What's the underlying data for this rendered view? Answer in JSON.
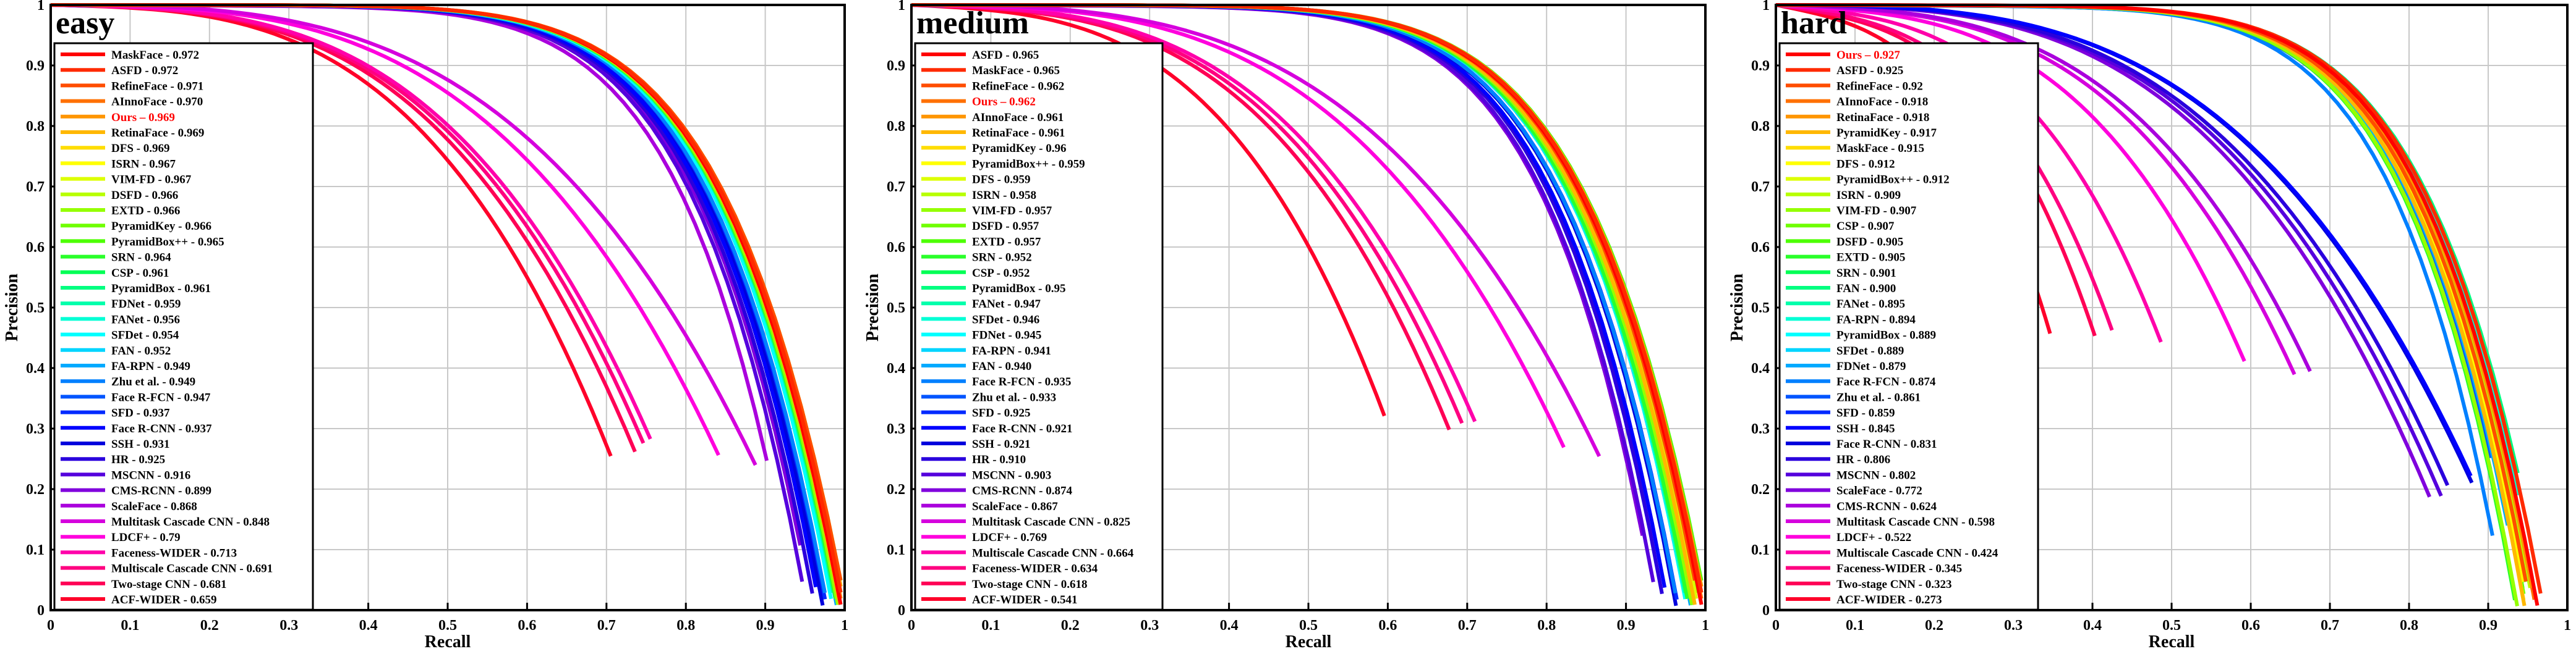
{
  "common": {
    "xlabel": "Recall",
    "ylabel": "Precision",
    "xticks": [
      "0",
      "0.1",
      "0.2",
      "0.3",
      "0.4",
      "0.5",
      "0.6",
      "0.7",
      "0.8",
      "0.9",
      "1"
    ],
    "yticks": [
      "0",
      "0.1",
      "0.2",
      "0.3",
      "0.4",
      "0.5",
      "0.6",
      "0.7",
      "0.8",
      "0.9",
      "1"
    ],
    "xlim": [
      0,
      1
    ],
    "ylim": [
      0,
      1
    ],
    "grid": true,
    "highlight_color": "#ff0000"
  },
  "chart_data": [
    {
      "type": "line",
      "title": "easy",
      "legend_position": "top-left",
      "series": [
        {
          "name": "MaskFace - 0.972",
          "color": "#ff0000",
          "ap": 0.972
        },
        {
          "name": "ASFD - 0.972",
          "color": "#ff2a00",
          "ap": 0.972
        },
        {
          "name": "RefineFace - 0.971",
          "color": "#ff4d00",
          "ap": 0.971
        },
        {
          "name": "AInnoFace - 0.970",
          "color": "#ff7000",
          "ap": 0.97
        },
        {
          "name": "Ours – 0.969",
          "color": "#ff9500",
          "ap": 0.969,
          "highlight": true
        },
        {
          "name": "RetinaFace - 0.969",
          "color": "#ffb800",
          "ap": 0.969
        },
        {
          "name": "DFS - 0.969",
          "color": "#ffdd00",
          "ap": 0.969
        },
        {
          "name": "ISRN - 0.967",
          "color": "#ffff00",
          "ap": 0.967
        },
        {
          "name": "VIM-FD - 0.967",
          "color": "#ddff00",
          "ap": 0.967
        },
        {
          "name": "DSFD - 0.966",
          "color": "#b8ff00",
          "ap": 0.966
        },
        {
          "name": "EXTD - 0.966",
          "color": "#95ff00",
          "ap": 0.966
        },
        {
          "name": "PyramidKey - 0.966",
          "color": "#70ff00",
          "ap": 0.966
        },
        {
          "name": "PyramidBox++ - 0.965",
          "color": "#4dff00",
          "ap": 0.965
        },
        {
          "name": "SRN - 0.964",
          "color": "#2aff2a",
          "ap": 0.964
        },
        {
          "name": "CSP - 0.961",
          "color": "#00ff55",
          "ap": 0.961
        },
        {
          "name": "PyramidBox - 0.961",
          "color": "#00ff80",
          "ap": 0.961
        },
        {
          "name": "FDNet - 0.959",
          "color": "#00ffaa",
          "ap": 0.959
        },
        {
          "name": "FANet - 0.956",
          "color": "#00ffd5",
          "ap": 0.956
        },
        {
          "name": "SFDet - 0.954",
          "color": "#00ffff",
          "ap": 0.954
        },
        {
          "name": "FAN - 0.952",
          "color": "#00d5ff",
          "ap": 0.952
        },
        {
          "name": "FA-RPN - 0.949",
          "color": "#00aaff",
          "ap": 0.949
        },
        {
          "name": "Zhu et al. - 0.949",
          "color": "#0080ff",
          "ap": 0.949
        },
        {
          "name": "Face R-FCN - 0.947",
          "color": "#0055ff",
          "ap": 0.947
        },
        {
          "name": "SFD - 0.937",
          "color": "#002aff",
          "ap": 0.937
        },
        {
          "name": "Face R-CNN - 0.937",
          "color": "#0000ff",
          "ap": 0.937
        },
        {
          "name": "SSH - 0.931",
          "color": "#0000dd",
          "ap": 0.931
        },
        {
          "name": "HR - 0.925",
          "color": "#2a00dd",
          "ap": 0.925
        },
        {
          "name": "MSCNN - 0.916",
          "color": "#5500dd",
          "ap": 0.916
        },
        {
          "name": "CMS-RCNN - 0.899",
          "color": "#8000dd",
          "ap": 0.899
        },
        {
          "name": "ScaleFace - 0.868",
          "color": "#aa00dd",
          "ap": 0.868
        },
        {
          "name": "Multitask Cascade CNN - 0.848",
          "color": "#d500dd",
          "ap": 0.848
        },
        {
          "name": "LDCF+ - 0.79",
          "color": "#ff00dd",
          "ap": 0.79
        },
        {
          "name": "Faceness-WIDER - 0.713",
          "color": "#ff00aa",
          "ap": 0.713
        },
        {
          "name": "Multiscale Cascade CNN - 0.691",
          "color": "#ff0080",
          "ap": 0.691
        },
        {
          "name": "Two-stage CNN - 0.681",
          "color": "#ff0055",
          "ap": 0.681
        },
        {
          "name": "ACF-WIDER - 0.659",
          "color": "#ff002a",
          "ap": 0.659
        }
      ]
    },
    {
      "type": "line",
      "title": "medium",
      "legend_position": "top-left",
      "series": [
        {
          "name": "ASFD - 0.965",
          "color": "#ff0000",
          "ap": 0.965
        },
        {
          "name": "MaskFace - 0.965",
          "color": "#ff2a00",
          "ap": 0.965
        },
        {
          "name": "RefineFace - 0.962",
          "color": "#ff4d00",
          "ap": 0.962
        },
        {
          "name": "Ours – 0.962",
          "color": "#ff7000",
          "ap": 0.962,
          "highlight": true
        },
        {
          "name": "AInnoFace - 0.961",
          "color": "#ff9500",
          "ap": 0.961
        },
        {
          "name": "RetinaFace - 0.961",
          "color": "#ffb800",
          "ap": 0.961
        },
        {
          "name": "PyramidKey - 0.96",
          "color": "#ffdd00",
          "ap": 0.96
        },
        {
          "name": "PyramidBox++ - 0.959",
          "color": "#ffff00",
          "ap": 0.959
        },
        {
          "name": "DFS - 0.959",
          "color": "#ddff00",
          "ap": 0.959
        },
        {
          "name": "ISRN - 0.958",
          "color": "#b8ff00",
          "ap": 0.958
        },
        {
          "name": "VIM-FD - 0.957",
          "color": "#95ff00",
          "ap": 0.957
        },
        {
          "name": "DSFD - 0.957",
          "color": "#70ff00",
          "ap": 0.957
        },
        {
          "name": "EXTD - 0.957",
          "color": "#4dff00",
          "ap": 0.957
        },
        {
          "name": "SRN - 0.952",
          "color": "#2aff2a",
          "ap": 0.952
        },
        {
          "name": "CSP - 0.952",
          "color": "#00ff55",
          "ap": 0.952
        },
        {
          "name": "PyramidBox - 0.95",
          "color": "#00ff80",
          "ap": 0.95
        },
        {
          "name": "FANet - 0.947",
          "color": "#00ffaa",
          "ap": 0.947
        },
        {
          "name": "SFDet - 0.946",
          "color": "#00ffd5",
          "ap": 0.946
        },
        {
          "name": "FDNet - 0.945",
          "color": "#00ffff",
          "ap": 0.945
        },
        {
          "name": "FA-RPN - 0.941",
          "color": "#00d5ff",
          "ap": 0.941
        },
        {
          "name": "FAN - 0.940",
          "color": "#00aaff",
          "ap": 0.94
        },
        {
          "name": "Face R-FCN - 0.935",
          "color": "#0080ff",
          "ap": 0.935
        },
        {
          "name": "Zhu et al. - 0.933",
          "color": "#0055ff",
          "ap": 0.933
        },
        {
          "name": "SFD - 0.925",
          "color": "#002aff",
          "ap": 0.925
        },
        {
          "name": "Face R-CNN - 0.921",
          "color": "#0000ff",
          "ap": 0.921
        },
        {
          "name": "SSH - 0.921",
          "color": "#0000dd",
          "ap": 0.921
        },
        {
          "name": "HR - 0.910",
          "color": "#2a00dd",
          "ap": 0.91
        },
        {
          "name": "MSCNN - 0.903",
          "color": "#5500dd",
          "ap": 0.903
        },
        {
          "name": "CMS-RCNN - 0.874",
          "color": "#8000dd",
          "ap": 0.874
        },
        {
          "name": "ScaleFace - 0.867",
          "color": "#aa00dd",
          "ap": 0.867
        },
        {
          "name": "Multitask Cascade CNN - 0.825",
          "color": "#d500dd",
          "ap": 0.825
        },
        {
          "name": "LDCF+ - 0.769",
          "color": "#ff00dd",
          "ap": 0.769
        },
        {
          "name": "Multiscale Cascade CNN - 0.664",
          "color": "#ff00aa",
          "ap": 0.664
        },
        {
          "name": "Faceness-WIDER - 0.634",
          "color": "#ff0080",
          "ap": 0.634
        },
        {
          "name": "Two-stage CNN - 0.618",
          "color": "#ff0055",
          "ap": 0.618
        },
        {
          "name": "ACF-WIDER - 0.541",
          "color": "#ff002a",
          "ap": 0.541
        }
      ]
    },
    {
      "type": "line",
      "title": "hard",
      "legend_position": "top-left",
      "series": [
        {
          "name": "Ours – 0.927",
          "color": "#ff0000",
          "ap": 0.927,
          "highlight": true
        },
        {
          "name": "ASFD - 0.925",
          "color": "#ff2a00",
          "ap": 0.925
        },
        {
          "name": "RefineFace - 0.92",
          "color": "#ff4d00",
          "ap": 0.92
        },
        {
          "name": "AInnoFace - 0.918",
          "color": "#ff7000",
          "ap": 0.918
        },
        {
          "name": "RetinaFace - 0.918",
          "color": "#ff9500",
          "ap": 0.918
        },
        {
          "name": "PyramidKey - 0.917",
          "color": "#ffb800",
          "ap": 0.917
        },
        {
          "name": "MaskFace - 0.915",
          "color": "#ffdd00",
          "ap": 0.915
        },
        {
          "name": "DFS - 0.912",
          "color": "#ffff00",
          "ap": 0.912
        },
        {
          "name": "PyramidBox++ - 0.912",
          "color": "#ddff00",
          "ap": 0.912
        },
        {
          "name": "ISRN - 0.909",
          "color": "#b8ff00",
          "ap": 0.909
        },
        {
          "name": "VIM-FD - 0.907",
          "color": "#95ff00",
          "ap": 0.907
        },
        {
          "name": "CSP - 0.907",
          "color": "#70ff00",
          "ap": 0.907
        },
        {
          "name": "DSFD - 0.905",
          "color": "#4dff00",
          "ap": 0.905
        },
        {
          "name": "EXTD - 0.905",
          "color": "#2aff2a",
          "ap": 0.905
        },
        {
          "name": "SRN - 0.901",
          "color": "#00ff55",
          "ap": 0.901
        },
        {
          "name": "FAN - 0.900",
          "color": "#00ff80",
          "ap": 0.9
        },
        {
          "name": "FANet - 0.895",
          "color": "#00ffaa",
          "ap": 0.895
        },
        {
          "name": "FA-RPN - 0.894",
          "color": "#00ffd5",
          "ap": 0.894
        },
        {
          "name": "PyramidBox - 0.889",
          "color": "#00ffff",
          "ap": 0.889
        },
        {
          "name": "SFDet - 0.889",
          "color": "#00d5ff",
          "ap": 0.889
        },
        {
          "name": "FDNet - 0.879",
          "color": "#00aaff",
          "ap": 0.879
        },
        {
          "name": "Face R-FCN - 0.874",
          "color": "#0080ff",
          "ap": 0.874
        },
        {
          "name": "Zhu et al. - 0.861",
          "color": "#0055ff",
          "ap": 0.861
        },
        {
          "name": "SFD - 0.859",
          "color": "#002aff",
          "ap": 0.859
        },
        {
          "name": "SSH - 0.845",
          "color": "#0000ff",
          "ap": 0.845
        },
        {
          "name": "Face R-CNN - 0.831",
          "color": "#0000dd",
          "ap": 0.831
        },
        {
          "name": "HR - 0.806",
          "color": "#2a00dd",
          "ap": 0.806
        },
        {
          "name": "MSCNN - 0.802",
          "color": "#5500dd",
          "ap": 0.802
        },
        {
          "name": "ScaleFace - 0.772",
          "color": "#8000dd",
          "ap": 0.772
        },
        {
          "name": "CMS-RCNN - 0.624",
          "color": "#aa00dd",
          "ap": 0.624
        },
        {
          "name": "Multitask Cascade CNN - 0.598",
          "color": "#d500dd",
          "ap": 0.598
        },
        {
          "name": "LDCF+ - 0.522",
          "color": "#ff00dd",
          "ap": 0.522
        },
        {
          "name": "Multiscale Cascade CNN - 0.424",
          "color": "#ff00aa",
          "ap": 0.424
        },
        {
          "name": "Faceness-WIDER - 0.345",
          "color": "#ff0080",
          "ap": 0.345
        },
        {
          "name": "Two-stage CNN - 0.323",
          "color": "#ff0055",
          "ap": 0.323
        },
        {
          "name": "ACF-WIDER - 0.273",
          "color": "#ff002a",
          "ap": 0.273
        }
      ]
    }
  ]
}
